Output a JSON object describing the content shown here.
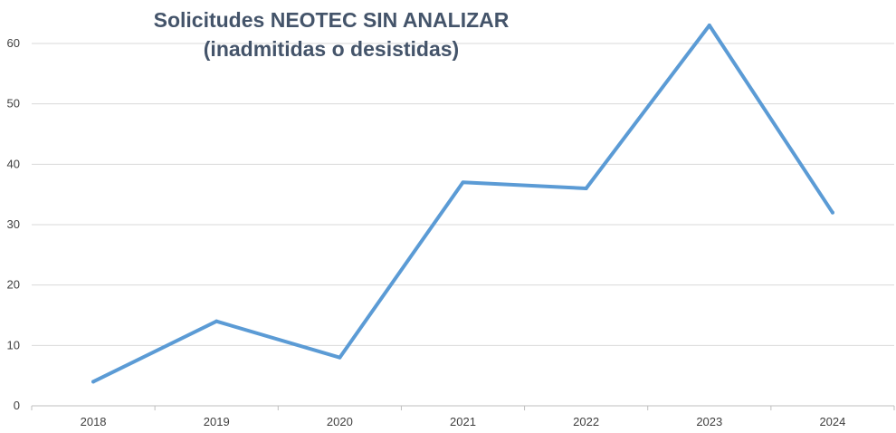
{
  "chart_data": {
    "type": "line",
    "title_lines": [
      "Solicitudes NEOTEC SIN ANALIZAR",
      "(inadmitidas o desistidas)"
    ],
    "xlabel": "",
    "ylabel": "",
    "categories": [
      "2018",
      "2019",
      "2020",
      "2021",
      "2022",
      "2023",
      "2024"
    ],
    "series": [
      {
        "values": [
          4,
          14,
          8,
          37,
          36,
          63,
          32
        ],
        "color": "#5b9bd5"
      }
    ],
    "ylim": [
      0,
      60
    ],
    "yticks": [
      "0",
      "10",
      "20",
      "30",
      "40",
      "50",
      "60"
    ],
    "grid": true,
    "legend": "none",
    "gridline_color": "#d9d9d9",
    "axis_color": "#bfbfbf",
    "title_color": "#44546a"
  }
}
